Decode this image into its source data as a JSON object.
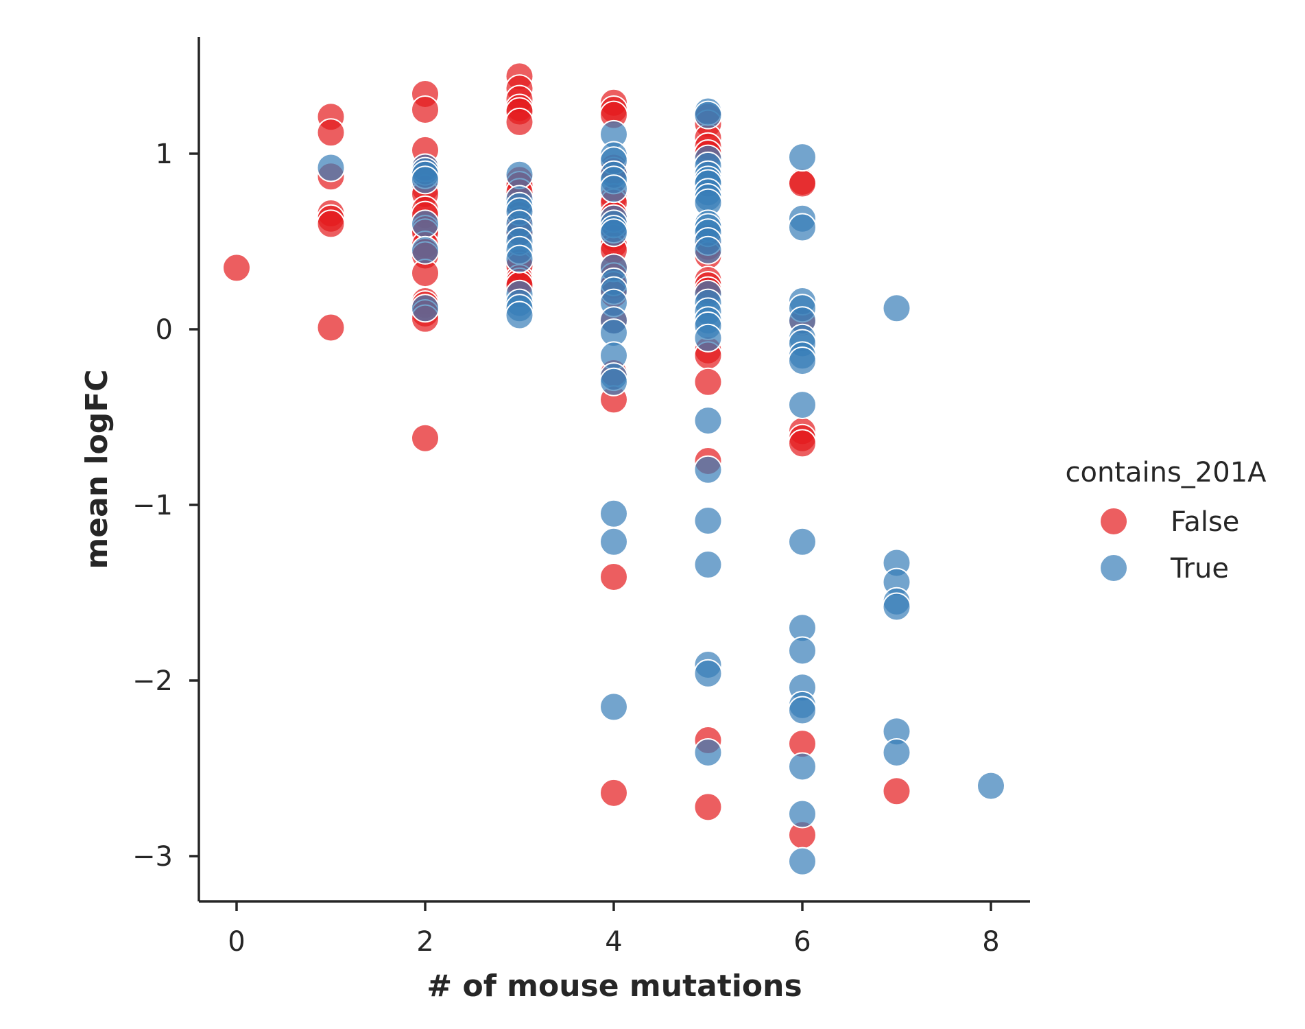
{
  "chart_data": {
    "type": "scatter",
    "xlabel": "# of mouse mutations",
    "ylabel": "mean logFC",
    "xlim": [
      -0.4,
      8.4
    ],
    "ylim": [
      -3.25,
      1.68
    ],
    "x_ticks": [
      0,
      2,
      4,
      6,
      8
    ],
    "x_tick_labels": [
      "0",
      "2",
      "4",
      "6",
      "8"
    ],
    "y_ticks": [
      1,
      0,
      -1,
      -2,
      -3
    ],
    "y_tick_labels": [
      "1",
      "0",
      "−1",
      "−2",
      "−3"
    ],
    "legend": {
      "title": "contains_201A",
      "position": "right"
    },
    "grid": false,
    "series": [
      {
        "name": "False",
        "color": "#e41a1c",
        "points": [
          [
            0,
            0.35
          ],
          [
            1,
            1.21
          ],
          [
            1,
            1.12
          ],
          [
            1,
            0.87
          ],
          [
            1,
            0.66
          ],
          [
            1,
            0.63
          ],
          [
            1,
            0.6
          ],
          [
            1,
            0.01
          ],
          [
            2,
            1.34
          ],
          [
            2,
            1.25
          ],
          [
            2,
            1.02
          ],
          [
            2,
            0.92
          ],
          [
            2,
            0.8
          ],
          [
            2,
            0.77
          ],
          [
            2,
            0.68
          ],
          [
            2,
            0.65
          ],
          [
            2,
            0.57
          ],
          [
            2,
            0.55
          ],
          [
            2,
            0.48
          ],
          [
            2,
            0.44
          ],
          [
            2,
            0.42
          ],
          [
            2,
            0.32
          ],
          [
            2,
            0.16
          ],
          [
            2,
            0.14
          ],
          [
            2,
            0.09
          ],
          [
            2,
            0.06
          ],
          [
            2,
            -0.62
          ],
          [
            3,
            1.44
          ],
          [
            3,
            1.37
          ],
          [
            3,
            1.31
          ],
          [
            3,
            1.26
          ],
          [
            3,
            1.24
          ],
          [
            3,
            1.18
          ],
          [
            3,
            0.85
          ],
          [
            3,
            0.82
          ],
          [
            3,
            0.78
          ],
          [
            3,
            0.65
          ],
          [
            3,
            0.62
          ],
          [
            3,
            0.57
          ],
          [
            3,
            0.55
          ],
          [
            3,
            0.38
          ],
          [
            3,
            0.36
          ],
          [
            3,
            0.29
          ],
          [
            3,
            0.27
          ],
          [
            3,
            0.25
          ],
          [
            4,
            1.29
          ],
          [
            4,
            1.25
          ],
          [
            4,
            1.22
          ],
          [
            4,
            0.92
          ],
          [
            4,
            0.9
          ],
          [
            4,
            0.75
          ],
          [
            4,
            0.72
          ],
          [
            4,
            0.65
          ],
          [
            4,
            0.6
          ],
          [
            4,
            0.52
          ],
          [
            4,
            0.48
          ],
          [
            4,
            0.45
          ],
          [
            4,
            0.35
          ],
          [
            4,
            0.3
          ],
          [
            4,
            0.25
          ],
          [
            4,
            0.2
          ],
          [
            4,
            0.05
          ],
          [
            4,
            -0.25
          ],
          [
            4,
            -0.4
          ],
          [
            4,
            -1.41
          ],
          [
            4,
            -2.64
          ],
          [
            5,
            1.21
          ],
          [
            5,
            1.17
          ],
          [
            5,
            1.09
          ],
          [
            5,
            1.04
          ],
          [
            5,
            1.0
          ],
          [
            5,
            0.52
          ],
          [
            5,
            0.47
          ],
          [
            5,
            0.42
          ],
          [
            5,
            0.28
          ],
          [
            5,
            0.25
          ],
          [
            5,
            0.22
          ],
          [
            5,
            -0.12
          ],
          [
            5,
            -0.15
          ],
          [
            5,
            -0.3
          ],
          [
            5,
            -0.75
          ],
          [
            5,
            -2.34
          ],
          [
            5,
            -2.72
          ],
          [
            6,
            0.84
          ],
          [
            6,
            0.83
          ],
          [
            6,
            0.04
          ],
          [
            6,
            -0.58
          ],
          [
            6,
            -0.62
          ],
          [
            6,
            -0.65
          ],
          [
            6,
            -2.36
          ],
          [
            6,
            -2.88
          ],
          [
            7,
            -2.63
          ]
        ]
      },
      {
        "name": "True",
        "color": "#377eb8",
        "points": [
          [
            1,
            0.92
          ],
          [
            2,
            0.92
          ],
          [
            2,
            0.9
          ],
          [
            2,
            0.88
          ],
          [
            2,
            0.85
          ],
          [
            2,
            0.6
          ],
          [
            2,
            0.45
          ],
          [
            2,
            0.12
          ],
          [
            3,
            0.88
          ],
          [
            3,
            0.74
          ],
          [
            3,
            0.7
          ],
          [
            3,
            0.67
          ],
          [
            3,
            0.6
          ],
          [
            3,
            0.55
          ],
          [
            3,
            0.5
          ],
          [
            3,
            0.45
          ],
          [
            3,
            0.4
          ],
          [
            3,
            0.2
          ],
          [
            3,
            0.15
          ],
          [
            3,
            0.12
          ],
          [
            3,
            0.08
          ],
          [
            4,
            1.11
          ],
          [
            4,
            0.99
          ],
          [
            4,
            0.96
          ],
          [
            4,
            0.88
          ],
          [
            4,
            0.85
          ],
          [
            4,
            0.8
          ],
          [
            4,
            0.63
          ],
          [
            4,
            0.6
          ],
          [
            4,
            0.57
          ],
          [
            4,
            0.55
          ],
          [
            4,
            0.35
          ],
          [
            4,
            0.27
          ],
          [
            4,
            0.22
          ],
          [
            4,
            0.15
          ],
          [
            4,
            0.05
          ],
          [
            4,
            -0.02
          ],
          [
            4,
            -0.15
          ],
          [
            4,
            -0.27
          ],
          [
            4,
            -0.3
          ],
          [
            4,
            -1.05
          ],
          [
            4,
            -1.21
          ],
          [
            4,
            -2.15
          ],
          [
            5,
            1.24
          ],
          [
            5,
            1.22
          ],
          [
            5,
            0.97
          ],
          [
            5,
            0.93
          ],
          [
            5,
            0.88
          ],
          [
            5,
            0.85
          ],
          [
            5,
            0.83
          ],
          [
            5,
            0.78
          ],
          [
            5,
            0.75
          ],
          [
            5,
            0.72
          ],
          [
            5,
            0.6
          ],
          [
            5,
            0.58
          ],
          [
            5,
            0.55
          ],
          [
            5,
            0.5
          ],
          [
            5,
            0.45
          ],
          [
            5,
            0.2
          ],
          [
            5,
            0.15
          ],
          [
            5,
            0.1
          ],
          [
            5,
            0.05
          ],
          [
            5,
            0.02
          ],
          [
            5,
            -0.05
          ],
          [
            5,
            -0.52
          ],
          [
            5,
            -0.8
          ],
          [
            5,
            -1.09
          ],
          [
            5,
            -1.34
          ],
          [
            5,
            -1.91
          ],
          [
            5,
            -1.96
          ],
          [
            5,
            -2.41
          ],
          [
            6,
            0.98
          ],
          [
            6,
            0.63
          ],
          [
            6,
            0.58
          ],
          [
            6,
            0.16
          ],
          [
            6,
            0.12
          ],
          [
            6,
            0.05
          ],
          [
            6,
            -0.05
          ],
          [
            6,
            -0.08
          ],
          [
            6,
            -0.15
          ],
          [
            6,
            -0.18
          ],
          [
            6,
            -0.43
          ],
          [
            6,
            -1.21
          ],
          [
            6,
            -1.7
          ],
          [
            6,
            -1.83
          ],
          [
            6,
            -2.04
          ],
          [
            6,
            -2.14
          ],
          [
            6,
            -2.17
          ],
          [
            6,
            -2.49
          ],
          [
            6,
            -2.76
          ],
          [
            6,
            -3.03
          ],
          [
            7,
            0.12
          ],
          [
            7,
            -1.33
          ],
          [
            7,
            -1.44
          ],
          [
            7,
            -1.55
          ],
          [
            7,
            -1.58
          ],
          [
            7,
            -2.29
          ],
          [
            7,
            -2.41
          ],
          [
            8,
            -2.6
          ]
        ]
      }
    ]
  }
}
